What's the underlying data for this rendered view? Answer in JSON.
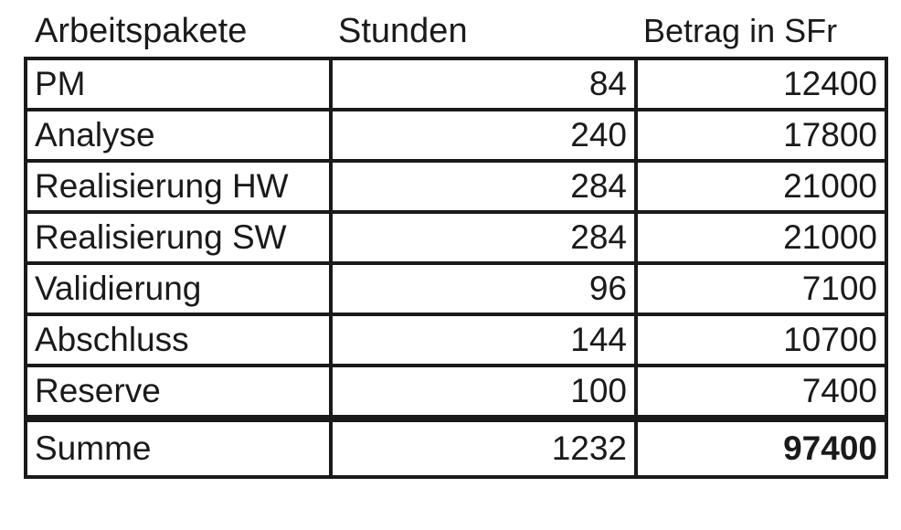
{
  "table": {
    "headers": [
      "Arbeitspakete",
      "Stunden",
      "Betrag in SFr"
    ],
    "rows": [
      {
        "name": "PM",
        "hours": "84",
        "amount": "12400"
      },
      {
        "name": "Analyse",
        "hours": "240",
        "amount": "17800"
      },
      {
        "name": "Realisierung HW",
        "hours": "284",
        "amount": "21000"
      },
      {
        "name": "Realisierung SW",
        "hours": "284",
        "amount": "21000"
      },
      {
        "name": "Validierung",
        "hours": "96",
        "amount": "7100"
      },
      {
        "name": "Abschluss",
        "hours": "144",
        "amount": "10700"
      },
      {
        "name": "Reserve",
        "hours": "100",
        "amount": "7400"
      }
    ],
    "total": {
      "name": "Summe",
      "hours": "1232",
      "amount": "97400"
    }
  }
}
